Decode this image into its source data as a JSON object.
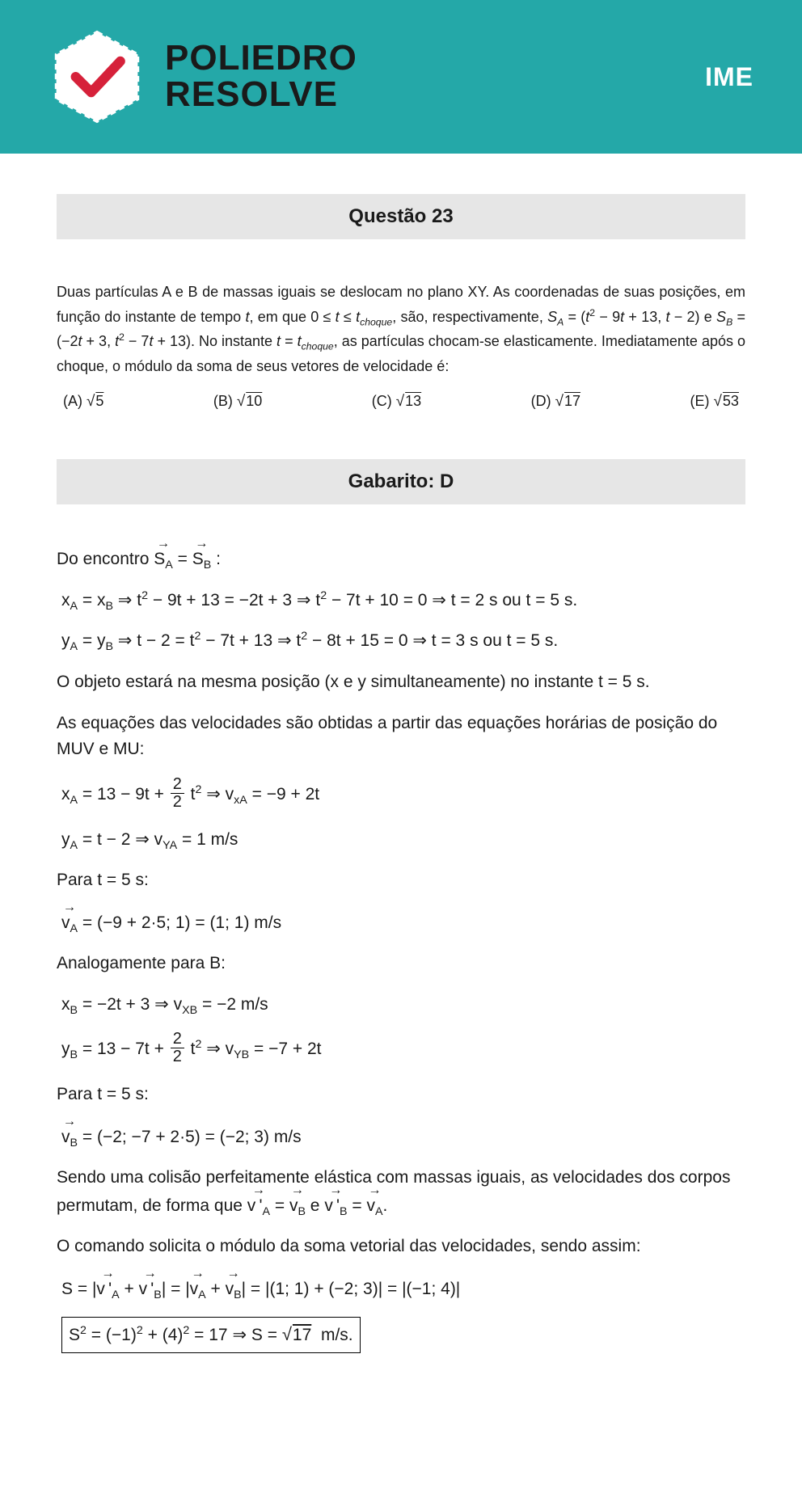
{
  "header": {
    "brand_line1": "POLIEDRO",
    "brand_line2": "RESOLVE",
    "exam": "IME",
    "bg_color": "#24a8a8",
    "logo_check_color": "#d6213a"
  },
  "question": {
    "title": "Questão 23",
    "text_html": "Duas partículas A e B de massas iguais se deslocam no plano XY. As coordenadas de suas posições, em função do instante de tempo <i>t</i>, em que 0 ≤ <i>t</i> ≤ <i>t<sub>choque</sub></i>, são, respectivamente, <i>S<sub>A</sub></i> = (<i>t</i><sup>2</sup> − 9<i>t</i> + 13, <i>t</i> − 2) e <i>S<sub>B</sub></i> = (−2<i>t</i> + 3, <i>t</i><sup>2</sup> − 7<i>t</i> + 13). No instante <i>t</i> = <i>t<sub>choque</sub></i>, as partículas chocam-se elasticamente. Imediatamente após o choque, o módulo da soma de seus vetores de velocidade é:",
    "options": {
      "A": "(A) <span class=\"radic\">√</span><span class=\"sqrt\">5</span>",
      "B": "(B) <span class=\"radic\">√</span><span class=\"sqrt\">10</span>",
      "C": "(C) <span class=\"radic\">√</span><span class=\"sqrt\">13</span>",
      "D": "(D) <span class=\"radic\">√</span><span class=\"sqrt\">17</span>",
      "E": "(E) <span class=\"radic\">√</span><span class=\"sqrt\">53</span>"
    }
  },
  "answer": {
    "title": "Gabarito: D"
  },
  "solution": {
    "l01": "Do encontro <span class=\"vec\">S<sub>A</sub></span> = <span class=\"vec\">S<sub>B</sub></span> :",
    "l02": "x<sub>A</sub> = x<sub>B</sub> ⇒ t<sup>2</sup> − 9t + 13 = −2t + 3 ⇒ t<sup>2</sup> − 7t + 10 = 0 ⇒ t = 2 s ou t = 5 s.",
    "l03": "y<sub>A</sub> = y<sub>B</sub> ⇒ t − 2 = t<sup>2</sup> − 7t + 13 ⇒ t<sup>2</sup> − 8t + 15 = 0 ⇒ t = 3 s ou t = 5 s.",
    "l04": "O objeto estará na mesma posição (x e y simultaneamente) no instante t = 5 s.",
    "l05": "As equações das velocidades são obtidas a partir das equações horárias de posição do MUV e MU:",
    "l06": "x<sub>A</sub> = 13 − 9t + <span class=\"frac\"><span class=\"num\">2</span><span class=\"den\">2</span></span> t<sup>2</sup> ⇒ v<sub>xA</sub> = −9 + 2t",
    "l07": "y<sub>A</sub> = t − 2 ⇒ v<sub>YA</sub> = 1 m/s",
    "l08": "Para t = 5 s:",
    "l09": "<span class=\"vec\">v<sub>A</sub></span> = (−9 + 2·5; 1) = (1; 1) m/s",
    "l10": "Analogamente para B:",
    "l11": "x<sub>B</sub> = −2t + 3 ⇒ v<sub>XB</sub> = −2 m/s",
    "l12": "y<sub>B</sub> = 13 − 7t + <span class=\"frac\"><span class=\"num\">2</span><span class=\"den\">2</span></span> t<sup>2</sup> ⇒ v<sub>YB</sub> = −7 + 2t",
    "l13": "Para t = 5 s:",
    "l14": "<span class=\"vec\">v<sub>B</sub></span> = (−2; −7 + 2·5) = (−2; 3) m/s",
    "l15": "Sendo uma colisão perfeitamente elástica com massas iguais, as velocidades dos corpos permutam, de forma que <span class=\"vec\">v&thinsp;'<sub>A</sub></span> = <span class=\"vec\">v<sub>B</sub></span> e <span class=\"vec\">v&thinsp;'<sub>B</sub></span> = <span class=\"vec\">v<sub>A</sub></span>.",
    "l16": "O comando solicita o módulo da soma vetorial das velocidades, sendo assim:",
    "l17": "S = |<span class=\"vec\">v&thinsp;'<sub>A</sub></span> + <span class=\"vec\">v&thinsp;'<sub>B</sub></span>| = |<span class=\"vec\">v<sub>A</sub></span> + <span class=\"vec\">v<sub>B</sub></span>| = |(1; 1) + (−2; 3)| = |(−1; 4)|",
    "l18": "S<sup>2</sup> = (−1)<sup>2</sup> + (4)<sup>2</sup> = 17 ⇒ S = <span class=\"radic\">√</span><span class=\"sqrt\">17</span>&nbsp; m/s."
  },
  "style": {
    "section_bg": "#e6e6e6",
    "body_width": 992,
    "body_height": 1868
  }
}
